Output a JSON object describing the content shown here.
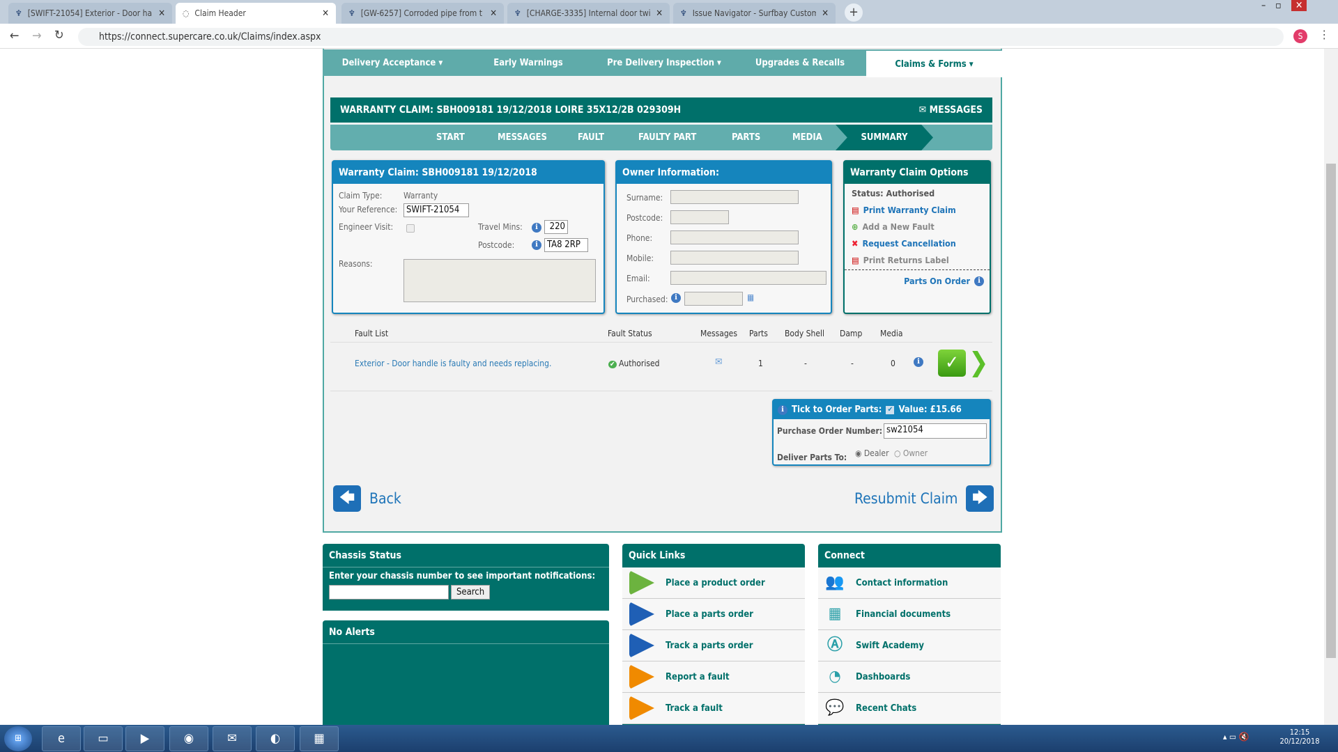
{
  "browser": {
    "tabs": [
      {
        "title": "[SWIFT-21054] Exterior - Door ha",
        "icon": "jira-icon",
        "active": false
      },
      {
        "title": "Claim Header",
        "icon": "globe-icon",
        "active": true
      },
      {
        "title": "[GW-6257] Corroded pipe from t",
        "icon": "jira-icon",
        "active": false
      },
      {
        "title": "[CHARGE-3335] Internal door twi",
        "icon": "jira-icon",
        "active": false
      },
      {
        "title": "Issue Navigator - Surfbay Custom",
        "icon": "jira-icon",
        "active": false
      }
    ],
    "url": "https://connect.supercare.co.uk/Claims/index.aspx",
    "profile_initial": "S"
  },
  "nav": [
    {
      "label": "Delivery Acceptance ▾"
    },
    {
      "label": "Early Warnings"
    },
    {
      "label": "Pre Delivery Inspection ▾"
    },
    {
      "label": "Upgrades & Recalls"
    },
    {
      "label": "Claims & Forms ▾",
      "active": true
    }
  ],
  "claim_header": {
    "title": "WARRANTY CLAIM: SBH009181 19/12/2018 LOIRE 35X12/2B 029309H",
    "messages_label": "MESSAGES"
  },
  "steps": [
    {
      "label": "START"
    },
    {
      "label": "MESSAGES"
    },
    {
      "label": "FAULT"
    },
    {
      "label": "FAULTY PART"
    },
    {
      "label": "PARTS"
    },
    {
      "label": "MEDIA"
    },
    {
      "label": "SUMMARY",
      "active": true
    }
  ],
  "claim_panel": {
    "title": "Warranty Claim: SBH009181 19/12/2018",
    "claim_type_label": "Claim Type:",
    "claim_type": "Warranty",
    "reference_label": "Your Reference:",
    "reference": "SWIFT-21054",
    "engineer_label": "Engineer Visit:",
    "engineer_visit": false,
    "travel_label": "Travel Mins:",
    "travel_mins": "220",
    "postcode_label": "Postcode:",
    "postcode": "TA8 2RP",
    "reasons_label": "Reasons:",
    "reasons": ""
  },
  "owner_panel": {
    "title": "Owner Information:",
    "surname_label": "Surname:",
    "postcode_label": "Postcode:",
    "phone_label": "Phone:",
    "mobile_label": "Mobile:",
    "email_label": "Email:",
    "purchased_label": "Purchased:"
  },
  "options_panel": {
    "title": "Warranty Claim Options",
    "status": "Status: Authorised",
    "print_claim": "Print Warranty Claim",
    "add_fault": "Add a New Fault",
    "request_cancel": "Request Cancellation",
    "print_returns": "Print Returns Label",
    "parts_on_order": "Parts On Order"
  },
  "fault_table": {
    "headers": [
      "Fault List",
      "Fault Status",
      "Messages",
      "Parts",
      "Body Shell",
      "Damp",
      "Media"
    ],
    "rows": [
      {
        "fault": "Exterior - Door handle is faulty and needs replacing.",
        "status": "Authorised",
        "parts": "1",
        "body_shell": "-",
        "damp": "-",
        "media": "0"
      }
    ]
  },
  "parts_box": {
    "tick_label": "Tick to Order Parts:",
    "tick_checked": true,
    "value": "Value: £15.66",
    "po_label": "Purchase Order Number:",
    "po_number": "sw21054",
    "deliver_label": "Deliver Parts To:",
    "dealer": "Dealer",
    "owner": "Owner",
    "selected": "Dealer"
  },
  "actions": {
    "back": "Back",
    "resubmit": "Resubmit Claim"
  },
  "chassis": {
    "title": "Chassis Status",
    "prompt": "Enter your chassis number to see important notifications:",
    "search": "Search",
    "value": ""
  },
  "alerts": {
    "title": "No Alerts"
  },
  "quick_links": {
    "title": "Quick Links",
    "items": [
      {
        "label": "Place a product order",
        "color": "#6cb33f"
      },
      {
        "label": "Place a parts order",
        "color": "#1f5fb5"
      },
      {
        "label": "Track a parts order",
        "color": "#1f5fb5"
      },
      {
        "label": "Report a fault",
        "color": "#f08a00"
      },
      {
        "label": "Track a fault",
        "color": "#f08a00"
      }
    ]
  },
  "connect": {
    "title": "Connect",
    "items": [
      {
        "label": "Contact information",
        "icon": "people-icon"
      },
      {
        "label": "Financial documents",
        "icon": "calculator-icon"
      },
      {
        "label": "Swift Academy",
        "icon": "academy-icon"
      },
      {
        "label": "Dashboards",
        "icon": "gauge-icon"
      },
      {
        "label": "Recent Chats",
        "icon": "chat-icon"
      }
    ]
  },
  "taskbar": {
    "time": "12:15",
    "date": "20/12/2018"
  },
  "colors": {
    "teal": "#00706a",
    "blue": "#1585bd",
    "nav": "#5fabaa"
  }
}
